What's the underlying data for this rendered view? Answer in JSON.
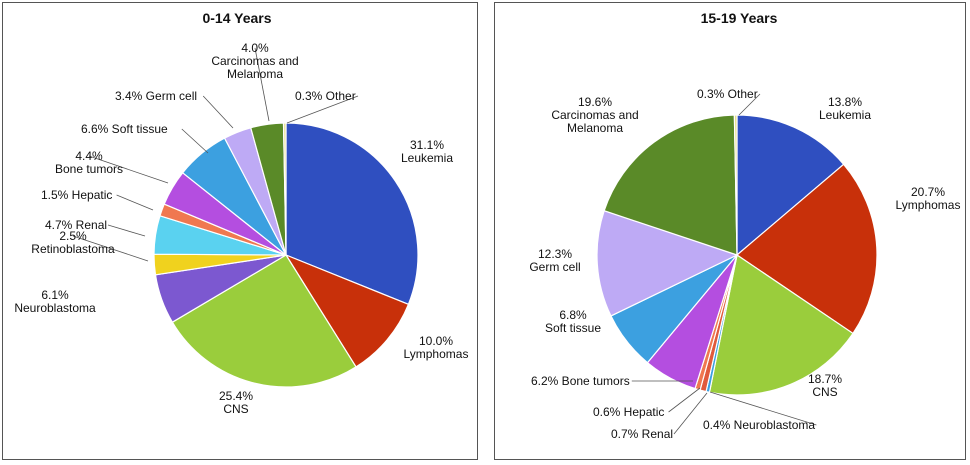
{
  "chart_data": [
    {
      "type": "pie",
      "title": "0-14 Years",
      "slices": [
        {
          "label": "Leukemia",
          "value": 31.1,
          "text": "31.1%",
          "color": "#2f4fc0"
        },
        {
          "label": "Lymphomas",
          "value": 10.0,
          "text": "10.0%",
          "color": "#c8300a"
        },
        {
          "label": "CNS",
          "value": 25.4,
          "text": "25.4%",
          "color": "#9acd3c"
        },
        {
          "label": "Neuroblastoma",
          "value": 6.1,
          "text": "6.1%",
          "color": "#7c58d0"
        },
        {
          "label": "Retinoblastoma",
          "value": 2.5,
          "text": "2.5%",
          "color": "#f0d21e"
        },
        {
          "label": "Renal",
          "value": 4.7,
          "text": "4.7%",
          "color": "#5ad2f0"
        },
        {
          "label": "Hepatic",
          "value": 1.5,
          "text": "1.5%",
          "color": "#f07850"
        },
        {
          "label": "Bone tumors",
          "value": 4.4,
          "text": "4.4%",
          "color": "#b44ee0"
        },
        {
          "label": "Soft tissue",
          "value": 6.6,
          "text": "6.6%",
          "color": "#3ca0e0"
        },
        {
          "label": "Germ cell",
          "value": 3.4,
          "text": "3.4%",
          "color": "#beaaf5"
        },
        {
          "label": "Carcinomas and Melanoma",
          "value": 4.0,
          "text": "4.0%",
          "color": "#5a8a28"
        },
        {
          "label": "Other",
          "value": 0.3,
          "text": "0.3%",
          "color": "#e6e08c"
        }
      ]
    },
    {
      "type": "pie",
      "title": "15-19 Years",
      "slices": [
        {
          "label": "Leukemia",
          "value": 13.8,
          "text": "13.8%",
          "color": "#2f4fc0"
        },
        {
          "label": "Lymphomas",
          "value": 20.7,
          "text": "20.7%",
          "color": "#c8300a"
        },
        {
          "label": "CNS",
          "value": 18.7,
          "text": "18.7%",
          "color": "#9acd3c"
        },
        {
          "label": "Neuroblastoma",
          "value": 0.4,
          "text": "0.4%",
          "color": "#3ca0e0"
        },
        {
          "label": "Renal",
          "value": 0.7,
          "text": "0.7%",
          "color": "#e05a3c"
        },
        {
          "label": "Hepatic",
          "value": 0.6,
          "text": "0.6%",
          "color": "#f07850"
        },
        {
          "label": "Bone tumors",
          "value": 6.2,
          "text": "6.2%",
          "color": "#b44ee0"
        },
        {
          "label": "Soft tissue",
          "value": 6.8,
          "text": "6.8%",
          "color": "#3ca0e0"
        },
        {
          "label": "Germ cell",
          "value": 12.3,
          "text": "12.3%",
          "color": "#beaaf5"
        },
        {
          "label": "Carcinomas and Melanoma",
          "value": 19.6,
          "text": "19.6%",
          "color": "#5a8a28"
        },
        {
          "label": "Other",
          "value": 0.3,
          "text": "0.3%",
          "color": "#e6e08c"
        }
      ]
    }
  ],
  "labels": {
    "left": [
      [
        "31.1%",
        "Leukemia"
      ],
      [
        "10.0%",
        "Lymphomas"
      ],
      [
        "25.4%",
        "CNS"
      ],
      [
        "6.1%",
        "Neuroblastoma"
      ],
      [
        "2.5%",
        "Retinoblastoma"
      ],
      [
        "4.7% Renal"
      ],
      [
        "1.5% Hepatic"
      ],
      [
        "4.4%",
        "Bone tumors"
      ],
      [
        "6.6% Soft tissue"
      ],
      [
        "3.4% Germ cell"
      ],
      [
        "4.0%",
        "Carcinomas and",
        "Melanoma"
      ],
      [
        "0.3% Other"
      ]
    ],
    "right": [
      [
        "13.8%",
        "Leukemia"
      ],
      [
        "20.7%",
        "Lymphomas"
      ],
      [
        "18.7%",
        "CNS"
      ],
      [
        "0.4% Neuroblastoma"
      ],
      [
        "0.7% Renal"
      ],
      [
        "0.6% Hepatic"
      ],
      [
        "6.2% Bone tumors"
      ],
      [
        "6.8%",
        "Soft tissue"
      ],
      [
        "12.3%",
        "Germ cell"
      ],
      [
        "19.6%",
        "Carcinomas and",
        "Melanoma"
      ],
      [
        "0.3% Other"
      ]
    ]
  }
}
